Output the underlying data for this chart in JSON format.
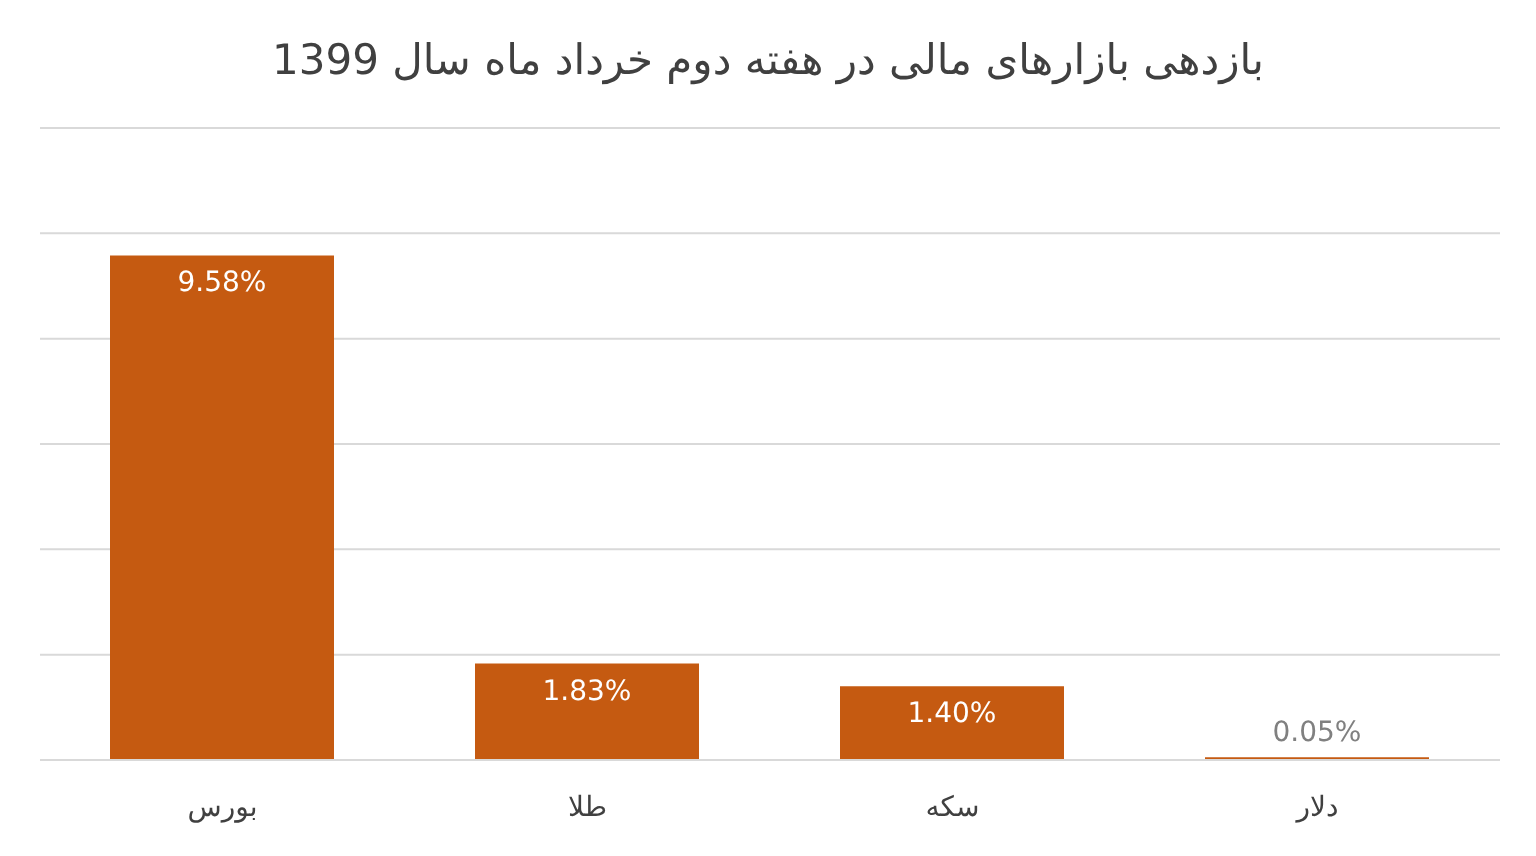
{
  "chart_data": {
    "type": "bar",
    "title": "بازدهی بازارهای مالی در هفته دوم خرداد ماه سال 1399",
    "categories": [
      "بورس",
      "طلا",
      "سکه",
      "دلار"
    ],
    "values": [
      9.58,
      1.83,
      1.4,
      0.05
    ],
    "value_labels": [
      "9.58%",
      "1.83%",
      "1.40%",
      "0.05%"
    ],
    "color": "#c55a11",
    "ylim": [
      0,
      12
    ],
    "yticks": [
      {
        "value": 0,
        "label": null
      },
      {
        "value": 2,
        "label": null
      },
      {
        "value": 4,
        "label": null
      },
      {
        "value": 6,
        "label": null
      },
      {
        "value": 8,
        "label": null
      },
      {
        "value": 10,
        "label": null
      },
      {
        "value": 12,
        "label": null
      }
    ],
    "grid": "y",
    "tick_labels": "x"
  }
}
